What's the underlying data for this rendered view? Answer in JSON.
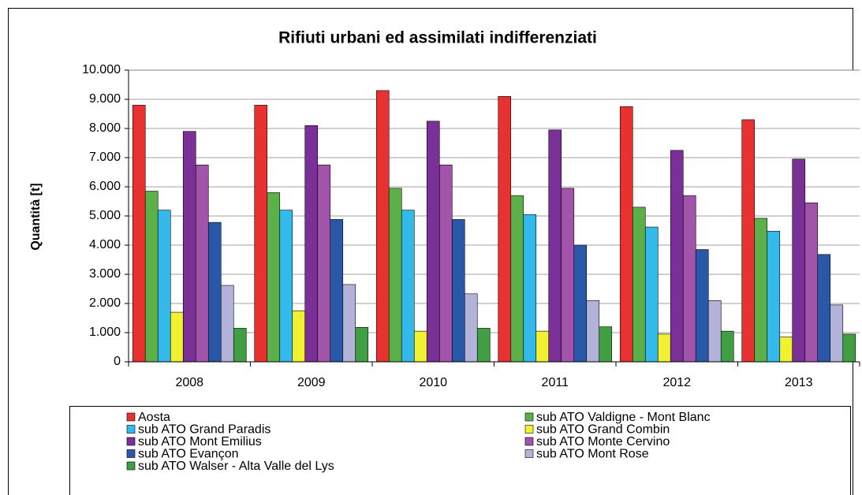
{
  "chart_data": {
    "type": "bar",
    "title": "Rifiuti urbani ed assimilati indifferenziati",
    "y_label": "Quantità [t]",
    "categories": [
      "2008",
      "2009",
      "2010",
      "2011",
      "2012",
      "2013"
    ],
    "series": [
      {
        "name": "Aosta",
        "color": "#e83232",
        "values": [
          8800,
          8800,
          9300,
          9100,
          8750,
          8300
        ]
      },
      {
        "name": "sub ATO Valdigne - Mont Blanc",
        "color": "#5cb04a",
        "values": [
          5850,
          5800,
          5950,
          5700,
          5300,
          4920
        ]
      },
      {
        "name": "sub ATO Grand Paradis",
        "color": "#33b9ea",
        "values": [
          5200,
          5200,
          5200,
          5050,
          4620,
          4480
        ]
      },
      {
        "name": "sub ATO Grand Combin",
        "color": "#f2f032",
        "values": [
          1700,
          1750,
          1050,
          1050,
          950,
          850
        ]
      },
      {
        "name": "sub ATO Mont Emilius",
        "color": "#7a3096",
        "values": [
          7900,
          8100,
          8250,
          7950,
          7250,
          6950
        ]
      },
      {
        "name": "sub ATO Monte Cervino",
        "color": "#a253aa",
        "values": [
          6750,
          6750,
          6750,
          5950,
          5700,
          5450
        ]
      },
      {
        "name": "sub ATO Evançon",
        "color": "#2a58a8",
        "values": [
          4780,
          4880,
          4880,
          4000,
          3850,
          3680
        ]
      },
      {
        "name": "sub ATO Mont Rose",
        "color": "#b3b3da",
        "values": [
          2620,
          2650,
          2330,
          2100,
          2100,
          1950
        ]
      },
      {
        "name": "sub ATO Walser - Alta Valle del Lys",
        "color": "#3f9f42",
        "values": [
          1150,
          1180,
          1150,
          1200,
          1050,
          950
        ]
      }
    ],
    "ylim": [
      0,
      10000
    ],
    "yticks": [
      0,
      {
        "value": 1000,
        "label": "1.000"
      },
      {
        "value": 2000,
        "label": "2.000"
      },
      {
        "value": 3000,
        "label": "3.000"
      },
      {
        "value": 4000,
        "label": "4.000"
      },
      {
        "value": 5000,
        "label": "5.000"
      },
      {
        "value": 6000,
        "label": "6.000"
      },
      {
        "value": 7000,
        "label": "7.000"
      },
      {
        "value": 8000,
        "label": "8.000"
      },
      {
        "value": 9000,
        "label": "9.000"
      },
      {
        "value": 10000,
        "label": "10.000"
      }
    ],
    "grid": true,
    "legend": "bottom"
  }
}
